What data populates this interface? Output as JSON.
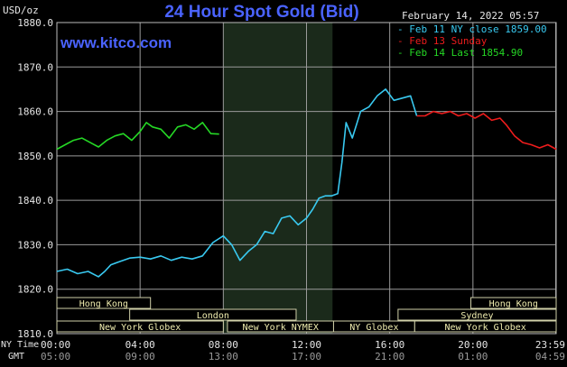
{
  "header": {
    "title": "24 Hour Spot Gold (Bid)",
    "unit_label": "USD/oz",
    "timestamp": "February 14, 2022 05:57",
    "website": "www.kitco.com"
  },
  "time_rows": {
    "ny_label": "NY Time",
    "gmt_label": "GMT"
  },
  "colors": {
    "background": "#000000",
    "title": "#4a63ff",
    "ny_close": "#39c9f0",
    "sunday": "#ee1c1c",
    "last": "#25d825",
    "night_shade": "#1b2a1b"
  },
  "chart_data": {
    "type": "line",
    "title": "24 Hour Spot Gold (Bid)",
    "ylabel": "USD/oz",
    "ylim": [
      1810,
      1880
    ],
    "yticks": [
      "1880.0",
      "1870.0",
      "1860.0",
      "1850.0",
      "1840.0",
      "1830.0",
      "1820.0",
      "1810.0"
    ],
    "ytick_values": [
      1880,
      1870,
      1860,
      1850,
      1840,
      1830,
      1820,
      1810
    ],
    "xlim": [
      0,
      24
    ],
    "xticks_ny": [
      "00:00",
      "04:00",
      "08:00",
      "12:00",
      "16:00",
      "20:00",
      "23:59"
    ],
    "xticks_gmt": [
      "05:00",
      "09:00",
      "13:00",
      "17:00",
      "21:00",
      "01:00",
      "04:59"
    ],
    "xtick_positions": [
      0,
      4,
      8,
      12,
      16,
      20,
      23.98
    ],
    "shaded_range": [
      8,
      13.25
    ],
    "grid": true,
    "legend_position": "top-right",
    "legend": [
      "Feb 11 NY close 1859.00",
      "Feb 13 Sunday",
      "Feb 14 Last 1854.90"
    ],
    "series": [
      {
        "name": "Feb 11 NY close 1859.00",
        "color": "#39c9f0",
        "x": [
          0,
          0.5,
          1.0,
          1.5,
          2.0,
          2.3,
          2.6,
          3.0,
          3.5,
          4.0,
          4.5,
          5.0,
          5.5,
          6.0,
          6.5,
          7.0,
          7.5,
          8.0,
          8.4,
          8.8,
          9.2,
          9.6,
          10.0,
          10.4,
          10.8,
          11.2,
          11.6,
          12.0,
          12.3,
          12.6,
          12.9,
          13.2,
          13.5,
          13.7,
          13.9,
          14.2,
          14.6,
          15.0,
          15.4,
          15.8,
          16.2,
          16.6,
          17.0,
          17.3
        ],
        "y": [
          1824,
          1824.5,
          1823.5,
          1824,
          1822.8,
          1824,
          1825.5,
          1826.2,
          1827,
          1827.2,
          1826.8,
          1827.5,
          1826.5,
          1827.2,
          1826.8,
          1827.5,
          1830.5,
          1832,
          1830,
          1826.5,
          1828.5,
          1830,
          1833,
          1832.5,
          1836,
          1836.5,
          1834.5,
          1836,
          1838,
          1840.5,
          1841,
          1841,
          1841.5,
          1848.5,
          1857.5,
          1854,
          1860,
          1861,
          1863.5,
          1865,
          1862.5,
          1863,
          1863.5,
          1859
        ]
      },
      {
        "name": "Feb 13 Sunday",
        "color": "#ee1c1c",
        "x": [
          17.3,
          17.7,
          18.1,
          18.5,
          18.9,
          19.3,
          19.7,
          20.1,
          20.5,
          20.9,
          21.3,
          21.6,
          22.0,
          22.4,
          22.8,
          23.2,
          23.6,
          24.0
        ],
        "y": [
          1859,
          1859,
          1860,
          1859.5,
          1860,
          1859,
          1859.5,
          1858.5,
          1859.5,
          1858,
          1858.5,
          1857,
          1854.5,
          1853,
          1852.5,
          1851.8,
          1852.5,
          1851.5
        ]
      },
      {
        "name": "Feb 14 Last 1854.90",
        "color": "#25d825",
        "x": [
          0,
          0.4,
          0.8,
          1.2,
          1.6,
          2.0,
          2.4,
          2.8,
          3.2,
          3.6,
          4.0,
          4.3,
          4.6,
          5.0,
          5.4,
          5.8,
          6.2,
          6.6,
          7.0,
          7.4,
          7.8
        ],
        "y": [
          1851.5,
          1852.5,
          1853.5,
          1854,
          1853,
          1852,
          1853.5,
          1854.5,
          1855,
          1853.5,
          1855.5,
          1857.5,
          1856.5,
          1856,
          1854,
          1856.5,
          1857,
          1856,
          1857.5,
          1855,
          1854.9
        ]
      }
    ],
    "session_rows": [
      [
        {
          "label": "Hong Kong",
          "start": 0,
          "end": 4.5
        },
        {
          "label": "Hong Kong",
          "start": 19.9,
          "end": 24
        }
      ],
      [
        {
          "label": "London",
          "start": 3.5,
          "end": 11.5
        },
        {
          "label": "Sydney",
          "start": 16.4,
          "end": 24
        }
      ],
      [
        {
          "label": "New York Globex",
          "start": 0,
          "end": 8
        },
        {
          "label": "New York NYMEX",
          "start": 8.2,
          "end": 13.3
        },
        {
          "label": "NY Globex",
          "start": 13.3,
          "end": 17.2
        },
        {
          "label": "New York Globex",
          "start": 17.2,
          "end": 24
        }
      ]
    ]
  }
}
